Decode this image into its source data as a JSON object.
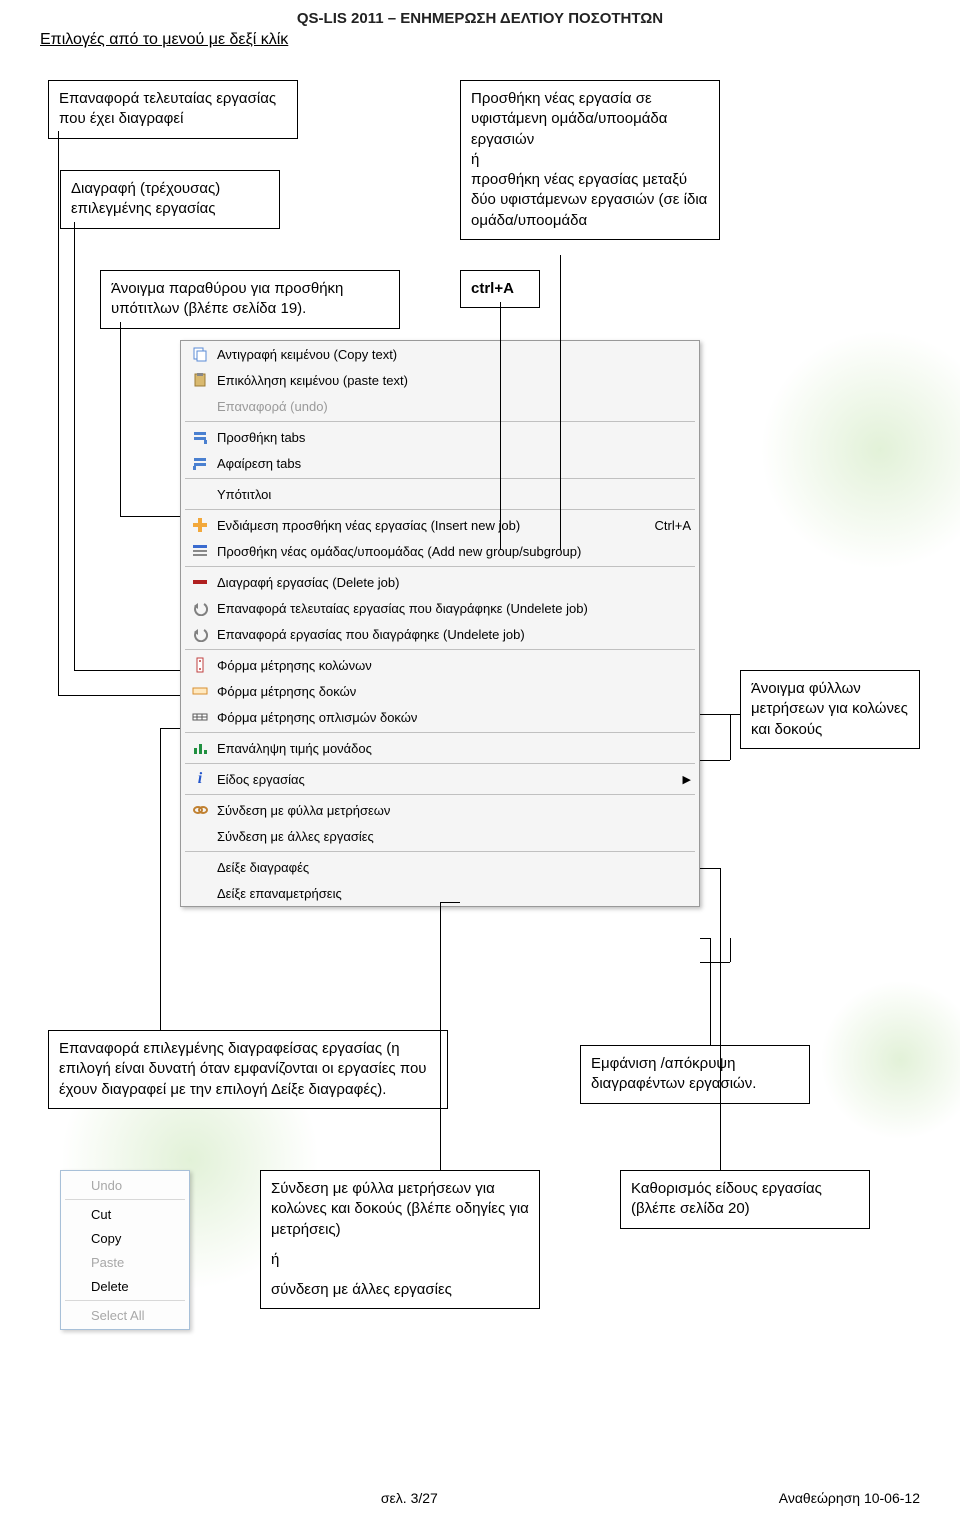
{
  "doc": {
    "header": "QS-LIS 2011 – ΕΝΗΜΕΡΩΣΗ ΔΕΛΤΙΟΥ ΠΟΣΟΤΗΤΩΝ",
    "subheader": "Επιλογές από το μενού με δεξί κλίκ",
    "footer_center": "σελ. 3/27",
    "footer_right": "Αναθεώρηση 10-06-12"
  },
  "callouts": {
    "c1": "Επαναφορά τελευταίας εργασίας που έχει διαγραφεί",
    "c2": "Διαγραφή (τρέχουσας) επιλεγμένης εργασίας",
    "c3": "Άνοιγμα παραθύρου για προσθήκη υπότιτλων (βλέπε σελίδα 19).",
    "c4": "Προσθήκη νέας εργασία σε υφιστάμενη ομάδα/υποομάδα εργασιών\n          ή\n προσθήκη νέας εργασίας μεταξύ δύο υφιστάμενων εργασιών (σε ίδια ομάδα/υποομάδα",
    "c5": "ctrl+A",
    "c6": "Άνοιγμα φύλλων μετρήσεων για κολώνες και δοκούς",
    "c7": "Επαναφορά επιλεγμένης διαγραφείσας εργασίας (η επιλογή είναι δυνατή όταν εμφανίζονται οι εργασίες που έχουν διαγραφεί με την επιλογή Δείξε διαγραφές).",
    "c8": "Εμφάνιση /απόκρυψη διαγραφέντων εργασιών.",
    "c9a": "Σύνδεση με φύλλα μετρήσεων για κολώνες και δοκούς (βλέπε οδηγίες για μετρήσεις)",
    "c9b": "ή",
    "c9c": "σύνδεση με άλλες εργασίες",
    "c10": "Καθορισμός είδους εργασίας (βλέπε σελίδα 20)"
  },
  "menu": {
    "items": [
      {
        "icon": "copy",
        "label": "Αντιγραφή κειμένου (Copy text)"
      },
      {
        "icon": "paste",
        "label": "Επικόλληση κειμένου (paste text)"
      },
      {
        "icon": "",
        "label": "Επαναφορά (undo)",
        "disabled": true
      },
      {
        "sep": true
      },
      {
        "icon": "tabs-add",
        "label": "Προσθήκη tabs"
      },
      {
        "icon": "tabs-rem",
        "label": "Αφαίρεση tabs"
      },
      {
        "sep": true
      },
      {
        "icon": "",
        "label": "Υπότιτλοι"
      },
      {
        "sep": true
      },
      {
        "icon": "plus",
        "label": "Ενδιάμεση προσθήκη νέας εργασίας (Insert new job)",
        "shortcut": "Ctrl+A"
      },
      {
        "icon": "group",
        "label": "Προσθήκη νέας ομάδας/υποομάδας (Add new group/subgroup)"
      },
      {
        "sep": true
      },
      {
        "icon": "minus",
        "label": "Διαγραφή εργασίας (Delete job)"
      },
      {
        "icon": "undo",
        "label": "Επαναφορά τελευταίας εργασίας που διαγράφηκε (Undelete job)"
      },
      {
        "icon": "undo",
        "label": "Επαναφορά εργασίας που διαγράφηκε (Undelete job)"
      },
      {
        "sep": true
      },
      {
        "icon": "col",
        "label": "Φόρμα μέτρησης κολώνων"
      },
      {
        "icon": "beam",
        "label": "Φόρμα μέτρησης δοκών"
      },
      {
        "icon": "rebar",
        "label": "Φόρμα μέτρησης οπλισμών δοκών"
      },
      {
        "sep": true
      },
      {
        "icon": "bar",
        "label": "Επανάληψη τιμής μονάδος"
      },
      {
        "sep": true
      },
      {
        "icon": "info",
        "label": "Είδος εργασίας",
        "sub": true
      },
      {
        "sep": true
      },
      {
        "icon": "link",
        "label": "Σύνδεση με φύλλα μετρήσεων"
      },
      {
        "icon": "",
        "label": "Σύνδεση με άλλες εργασίες"
      },
      {
        "sep": true
      },
      {
        "icon": "",
        "label": "Δείξε διαγραφές"
      },
      {
        "icon": "",
        "label": "Δείξε επαναμετρήσεις"
      }
    ]
  },
  "edit_menu": {
    "items": [
      {
        "label": "Undo",
        "disabled": true
      },
      {
        "sep": true
      },
      {
        "label": "Cut"
      },
      {
        "label": "Copy"
      },
      {
        "label": "Paste",
        "disabled": true
      },
      {
        "label": "Delete"
      },
      {
        "sep": true
      },
      {
        "label": "Select All",
        "disabled": true
      }
    ]
  },
  "colors": {
    "plus": "#f2a83b",
    "minus": "#b02020",
    "info": "#2255cc",
    "beam": "#d89030",
    "col": "#c04040",
    "group": "#3a6bcf",
    "undo": "#808080",
    "rebar": "#5a5a5a",
    "bar": "#209040",
    "link": "#c08030"
  }
}
